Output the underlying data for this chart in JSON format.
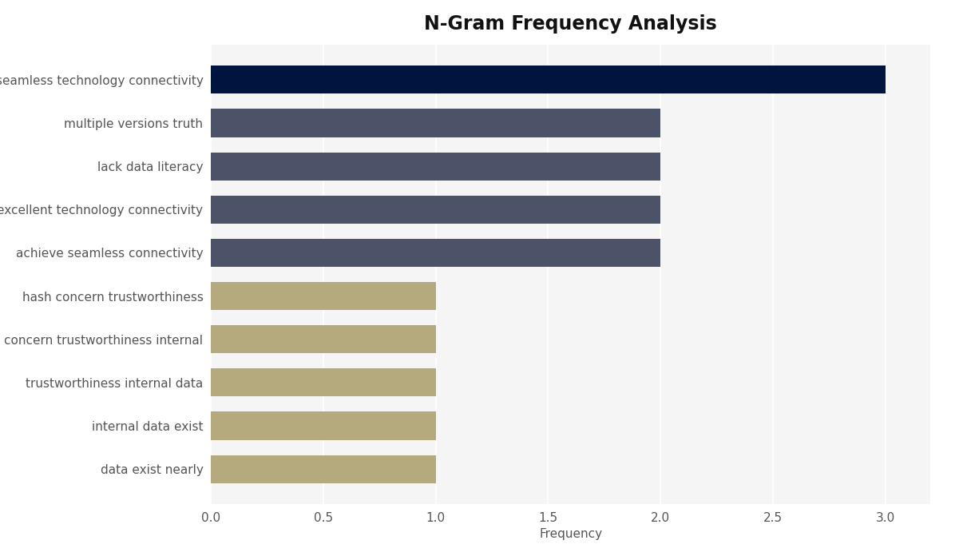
{
  "title": "N-Gram Frequency Analysis",
  "xlabel": "Frequency",
  "categories": [
    "data exist nearly",
    "internal data exist",
    "trustworthiness internal data",
    "concern trustworthiness internal",
    "hash concern trustworthiness",
    "achieve seamless connectivity",
    "excellent technology connectivity",
    "lack data literacy",
    "multiple versions truth",
    "seamless technology connectivity"
  ],
  "values": [
    1,
    1,
    1,
    1,
    1,
    2,
    2,
    2,
    2,
    3
  ],
  "bar_colors": [
    "#b5aa7e",
    "#b5aa7e",
    "#b5aa7e",
    "#b5aa7e",
    "#b5aa7e",
    "#4c5368",
    "#4c5368",
    "#4c5368",
    "#4c5368",
    "#001440"
  ],
  "xlim": [
    0,
    3.2
  ],
  "xticks": [
    0.0,
    0.5,
    1.0,
    1.5,
    2.0,
    2.5,
    3.0
  ],
  "background_color": "#ffffff",
  "plot_area_color": "#f5f5f5",
  "title_fontsize": 17,
  "label_fontsize": 11,
  "tick_fontsize": 11,
  "bar_height": 0.65
}
